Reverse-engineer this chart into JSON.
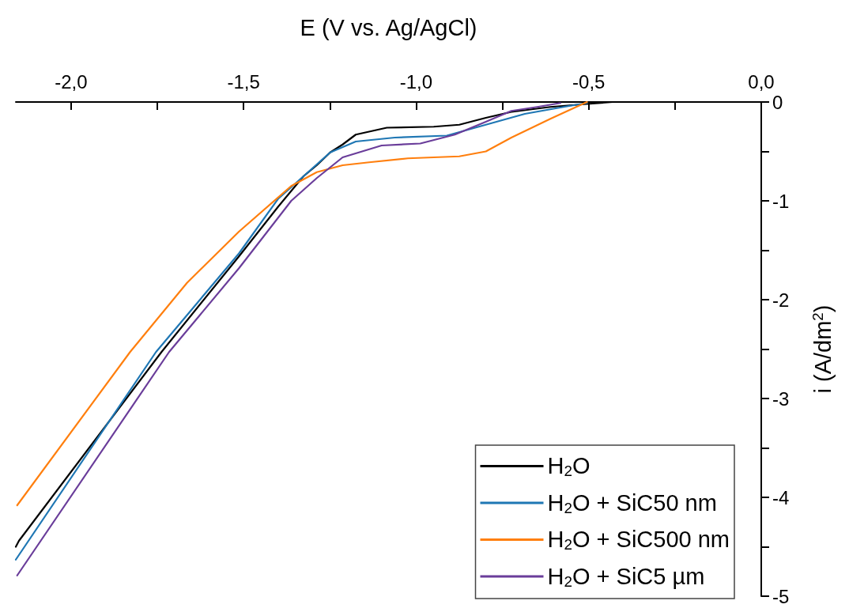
{
  "chart_data": {
    "type": "line",
    "xlabel": "E (V vs. Ag/AgCl)",
    "ylabel": "i (A/dm$^{2}$)",
    "xlim": [
      -2.16,
      0
    ],
    "ylim": [
      -5,
      0
    ],
    "xticks": [
      {
        "value": -2,
        "label": "-2,0"
      },
      {
        "value": -1.75,
        "label": null
      },
      {
        "value": -1.5,
        "label": "-1,5"
      },
      {
        "value": -1.25,
        "label": null
      },
      {
        "value": -1,
        "label": "-1,0"
      },
      {
        "value": -0.75,
        "label": null
      },
      {
        "value": -0.5,
        "label": "-0,5"
      },
      {
        "value": -0.25,
        "label": null
      },
      {
        "value": 0,
        "label": "0,0"
      }
    ],
    "yticks": [
      0,
      {
        "value": -0.5,
        "label": null
      },
      -1,
      {
        "value": -1.5,
        "label": null
      },
      -2,
      {
        "value": -2.5,
        "label": null
      },
      -3,
      {
        "value": -3.5,
        "label": null
      },
      -4,
      {
        "value": -4.5,
        "label": null
      },
      -5
    ],
    "grid": false,
    "legend": "bottom right",
    "marker": "none",
    "line_style": "solid",
    "series": [
      {
        "name": "H$_{2}$O",
        "color": "#000000",
        "x": [
          -2.16,
          -2.151,
          -1.738,
          -1.513,
          -1.4,
          -1.362,
          -1.326,
          -1.288,
          -1.249,
          -1.213,
          -1.175,
          -1.085,
          -0.949,
          -0.875,
          -0.798,
          -0.724,
          -0.611,
          -0.505,
          -0.431
        ],
        "values": [
          -4.5,
          -4.44,
          -2.53,
          -1.56,
          -1.06,
          -0.9,
          -0.75,
          -0.64,
          -0.51,
          -0.43,
          -0.33,
          -0.26,
          -0.25,
          -0.23,
          -0.16,
          -0.1,
          -0.05,
          -0.02,
          0
        ]
      },
      {
        "name": "H$_{2}$O + SiC50 nm",
        "color": "#1f77b4",
        "x": [
          -2.16,
          -1.754,
          -1.513,
          -1.4,
          -1.326,
          -1.249,
          -1.175,
          -1.062,
          -0.911,
          -0.798,
          -0.685,
          -0.573,
          -0.505
        ],
        "values": [
          -4.63,
          -2.53,
          -1.53,
          -0.98,
          -0.75,
          -0.51,
          -0.4,
          -0.36,
          -0.34,
          -0.23,
          -0.12,
          -0.05,
          -0.01
        ]
      },
      {
        "name": "H$_{2}$O + SiC500 nm",
        "color": "#ff7f0e",
        "x": [
          -2.156,
          -1.829,
          -1.664,
          -1.513,
          -1.362,
          -1.288,
          -1.213,
          -1.136,
          -1.024,
          -0.875,
          -0.798,
          -0.724,
          -0.611,
          -0.505
        ],
        "values": [
          -4.08,
          -2.53,
          -1.83,
          -1.31,
          -0.85,
          -0.71,
          -0.64,
          -0.61,
          -0.57,
          -0.55,
          -0.5,
          -0.36,
          -0.17,
          0
        ]
      },
      {
        "name": "H$_{2}$O + SiC5 µm",
        "color": "#6a3d9a",
        "x": [
          -2.156,
          -1.716,
          -1.513,
          -1.362,
          -1.288,
          -1.213,
          -1.1,
          -0.988,
          -0.888,
          -0.798,
          -0.724,
          -0.649,
          -0.582
        ],
        "values": [
          -4.79,
          -2.53,
          -1.68,
          -1,
          -0.77,
          -0.56,
          -0.44,
          -0.42,
          -0.33,
          -0.2,
          -0.09,
          -0.05,
          -0.01
        ]
      }
    ]
  }
}
